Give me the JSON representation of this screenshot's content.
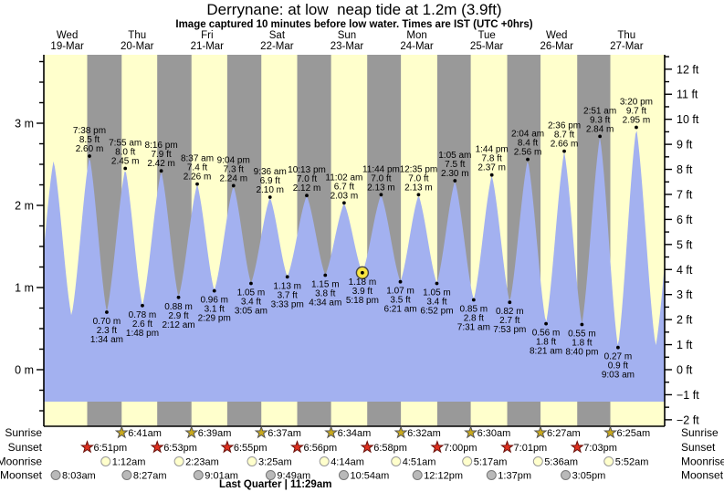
{
  "title": "Derrynane: at low  neap tide at 1.2m (3.9ft)",
  "subtitle": "Image captured 10 minutes before low water. Times are IST (UTC +0hrs)",
  "colors": {
    "day_band": "#ffffcc",
    "night_band": "#999999",
    "tide_fill": "#a3b1f0",
    "day_label_red": "#ee1111",
    "sunrise_star": "#c9a91c",
    "sunset_star": "#e03020",
    "moonrise_disc": "#ffffcc",
    "moonset_disc": "#b9b9b9",
    "current_marker": "#f8e540",
    "text": "#000000"
  },
  "days": [
    {
      "name": "Wed",
      "date": "19-Mar",
      "noon_t": 12
    },
    {
      "name": "Thu",
      "date": "20-Mar",
      "noon_t": 36
    },
    {
      "name": "Fri",
      "date": "21-Mar",
      "noon_t": 60
    },
    {
      "name": "Sat",
      "date": "22-Mar",
      "noon_t": 84
    },
    {
      "name": "Sun",
      "date": "23-Mar",
      "noon_t": 108
    },
    {
      "name": "Mon",
      "date": "24-Mar",
      "noon_t": 132
    },
    {
      "name": "Tue",
      "date": "25-Mar",
      "noon_t": 156
    },
    {
      "name": "Wed",
      "date": "26-Mar",
      "noon_t": 180
    },
    {
      "name": "Thu",
      "date": "27-Mar",
      "noon_t": 204
    }
  ],
  "chart_data": {
    "type": "area",
    "x_unit": "hours since Wed 19-Mar 00:00 (IST)",
    "y_left_axis": {
      "unit": "m",
      "tick_labels": [
        "0 m",
        "1 m",
        "2 m",
        "3 m"
      ],
      "tick_values_m": [
        0,
        1,
        2,
        3
      ],
      "minor_step_m": 0.25
    },
    "y_right_axis": {
      "unit": "ft",
      "tick_values_ft": [
        -2,
        -1,
        0,
        1,
        2,
        3,
        4,
        5,
        6,
        7,
        8,
        9,
        10,
        11,
        12
      ],
      "minor_step_ft": 0.5
    },
    "grid": false,
    "legend": false,
    "tides": [
      {
        "kind": "high",
        "t": 19.633,
        "height_m": 2.6,
        "lines": [
          "7:38 pm",
          "8.5 ft",
          "2.60 m"
        ]
      },
      {
        "kind": "low",
        "t": 25.567,
        "height_m": 0.7,
        "lines": [
          "0.70 m",
          "2.3 ft",
          "1:34 am"
        ]
      },
      {
        "kind": "high",
        "t": 31.917,
        "height_m": 2.45,
        "lines": [
          "7:55 am",
          "8.0 ft",
          "2.45 m"
        ]
      },
      {
        "kind": "low",
        "t": 37.8,
        "height_m": 0.78,
        "lines": [
          "0.78 m",
          "2.6 ft",
          "1:48 pm"
        ]
      },
      {
        "kind": "high",
        "t": 44.267,
        "height_m": 2.42,
        "lines": [
          "8:16 pm",
          "7.9 ft",
          "2.42 m"
        ]
      },
      {
        "kind": "low",
        "t": 50.2,
        "height_m": 0.88,
        "lines": [
          "0.88 m",
          "2.9 ft",
          "2:12 am"
        ]
      },
      {
        "kind": "high",
        "t": 56.617,
        "height_m": 2.26,
        "lines": [
          "8:37 am",
          "7.4 ft",
          "2.26 m"
        ]
      },
      {
        "kind": "low",
        "t": 62.483,
        "height_m": 0.96,
        "lines": [
          "0.96 m",
          "3.1 ft",
          "2:29 pm"
        ]
      },
      {
        "kind": "high",
        "t": 69.067,
        "height_m": 2.24,
        "lines": [
          "9:04 pm",
          "7.3 ft",
          "2.24 m"
        ]
      },
      {
        "kind": "low",
        "t": 75.083,
        "height_m": 1.05,
        "lines": [
          "1.05 m",
          "3.4 ft",
          "3:05 am"
        ]
      },
      {
        "kind": "high",
        "t": 81.6,
        "height_m": 2.1,
        "lines": [
          "9:36 am",
          "6.9 ft",
          "2.10 m"
        ]
      },
      {
        "kind": "low",
        "t": 87.55,
        "height_m": 1.13,
        "lines": [
          "1.13 m",
          "3.7 ft",
          "3:33 pm"
        ]
      },
      {
        "kind": "high",
        "t": 94.217,
        "height_m": 2.12,
        "lines": [
          "10:13 pm",
          "7.0 ft",
          "2.12 m"
        ]
      },
      {
        "kind": "low",
        "t": 100.567,
        "height_m": 1.15,
        "lines": [
          "1.15 m",
          "3.8 ft",
          "4:34 am"
        ]
      },
      {
        "kind": "high",
        "t": 107.033,
        "height_m": 2.03,
        "lines": [
          "11:02 am",
          "6.7 ft",
          "2.03 m"
        ]
      },
      {
        "kind": "low",
        "t": 113.3,
        "height_m": 1.18,
        "lines": [
          "1.18 m",
          "3.9 ft",
          "5:18 pm"
        ],
        "current": true
      },
      {
        "kind": "high",
        "t": 119.733,
        "height_m": 2.13,
        "lines": [
          "11:44 pm",
          "7.0 ft",
          "2.13 m"
        ]
      },
      {
        "kind": "low",
        "t": 126.35,
        "height_m": 1.07,
        "lines": [
          "1.07 m",
          "3.5 ft",
          "6:21 am"
        ]
      },
      {
        "kind": "high",
        "t": 132.583,
        "height_m": 2.13,
        "lines": [
          "12:35 pm",
          "7.0 ft",
          "2.13 m"
        ]
      },
      {
        "kind": "low",
        "t": 138.867,
        "height_m": 1.05,
        "lines": [
          "1.05 m",
          "3.4 ft",
          "6:52 pm"
        ]
      },
      {
        "kind": "high",
        "t": 145.083,
        "height_m": 2.3,
        "lines": [
          "1:05 am",
          "7.5 ft",
          "2.30 m"
        ]
      },
      {
        "kind": "low",
        "t": 151.517,
        "height_m": 0.85,
        "lines": [
          "0.85 m",
          "2.8 ft",
          "7:31 am"
        ]
      },
      {
        "kind": "high",
        "t": 157.733,
        "height_m": 2.37,
        "lines": [
          "1:44 pm",
          "7.8 ft",
          "2.37 m"
        ]
      },
      {
        "kind": "low",
        "t": 163.883,
        "height_m": 0.82,
        "lines": [
          "0.82 m",
          "2.7 ft",
          "7:53 pm"
        ]
      },
      {
        "kind": "high",
        "t": 170.067,
        "height_m": 2.56,
        "lines": [
          "2:04 am",
          "8.4 ft",
          "2.56 m"
        ]
      },
      {
        "kind": "low",
        "t": 176.35,
        "height_m": 0.56,
        "lines": [
          "0.56 m",
          "1.8 ft",
          "8:21 am"
        ]
      },
      {
        "kind": "high",
        "t": 182.6,
        "height_m": 2.66,
        "lines": [
          "2:36 pm",
          "8.7 ft",
          "2.66 m"
        ]
      },
      {
        "kind": "low",
        "t": 188.667,
        "height_m": 0.55,
        "lines": [
          "0.55 m",
          "1.8 ft",
          "8:40 pm"
        ]
      },
      {
        "kind": "high",
        "t": 194.85,
        "height_m": 2.84,
        "lines": [
          "2:51 am",
          "9.3 ft",
          "2.84 m"
        ]
      },
      {
        "kind": "low",
        "t": 201.05,
        "height_m": 0.27,
        "lines": [
          "0.27 m",
          "0.9 ft",
          "9:03 am"
        ]
      },
      {
        "kind": "high",
        "t": 207.333,
        "height_m": 2.95,
        "lines": [
          "3:20 pm",
          "9.7 ft",
          "2.95 m"
        ]
      }
    ],
    "edge_extremes_estimated": [
      {
        "kind": "low",
        "t": 1.2,
        "height_m": 0.6
      },
      {
        "kind": "high",
        "t": 7.33,
        "height_m": 2.55
      },
      {
        "kind": "low",
        "t": 13.45,
        "height_m": 0.65
      },
      {
        "kind": "low",
        "t": 214.0,
        "height_m": 0.28
      },
      {
        "kind": "high",
        "t": 221.5,
        "height_m": 2.9
      }
    ]
  },
  "astro": {
    "rows": [
      {
        "key": "sunrise",
        "label": "Sunrise",
        "icon": "sunrise-star-icon",
        "events": [
          {
            "time": "6:41am",
            "t": 30.683
          },
          {
            "time": "6:39am",
            "t": 54.65
          },
          {
            "time": "6:37am",
            "t": 78.617
          },
          {
            "time": "6:34am",
            "t": 102.567
          },
          {
            "time": "6:32am",
            "t": 126.533
          },
          {
            "time": "6:30am",
            "t": 150.5
          },
          {
            "time": "6:27am",
            "t": 174.45
          },
          {
            "time": "6:25am",
            "t": 198.417
          }
        ]
      },
      {
        "key": "sunset",
        "label": "Sunset",
        "icon": "sunset-star-icon",
        "events": [
          {
            "time": "6:51pm",
            "t": 18.85
          },
          {
            "time": "6:53pm",
            "t": 42.883
          },
          {
            "time": "6:55pm",
            "t": 66.917
          },
          {
            "time": "6:56pm",
            "t": 90.933
          },
          {
            "time": "6:58pm",
            "t": 114.967
          },
          {
            "time": "7:00pm",
            "t": 139.0
          },
          {
            "time": "7:01pm",
            "t": 163.017
          },
          {
            "time": "7:03pm",
            "t": 187.05
          }
        ]
      },
      {
        "key": "moonrise",
        "label": "Moonrise",
        "icon": "moonrise-icon",
        "events": [
          {
            "time": "1:12am",
            "t": 25.2
          },
          {
            "time": "2:23am",
            "t": 50.383
          },
          {
            "time": "3:25am",
            "t": 75.417
          },
          {
            "time": "4:14am",
            "t": 100.233
          },
          {
            "time": "4:51am",
            "t": 124.85
          },
          {
            "time": "5:17am",
            "t": 149.283
          },
          {
            "time": "5:36am",
            "t": 173.6
          },
          {
            "time": "5:52am",
            "t": 197.867
          }
        ]
      },
      {
        "key": "moonset",
        "label": "Moonset",
        "icon": "moonset-icon",
        "events": [
          {
            "time": "8:03am",
            "t": 8.05
          },
          {
            "time": "8:27am",
            "t": 32.45
          },
          {
            "time": "9:01am",
            "t": 57.017
          },
          {
            "time": "9:49am",
            "t": 81.817
          },
          {
            "time": "10:54am",
            "t": 106.9
          },
          {
            "time": "12:12pm",
            "t": 132.2
          },
          {
            "time": "1:37pm",
            "t": 157.617
          },
          {
            "time": "3:05pm",
            "t": 183.083
          }
        ]
      }
    ],
    "footer": {
      "text": "Last Quarter | 11:29am",
      "t": 83.483
    }
  }
}
